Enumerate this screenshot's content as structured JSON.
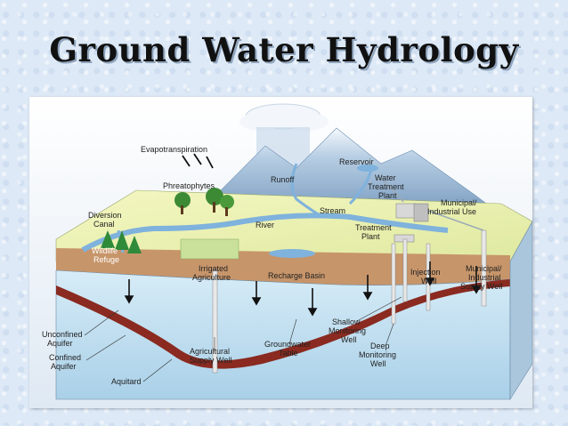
{
  "title": "Ground Water Hydrology",
  "labels": {
    "evapotranspiration": "Evapotranspiration",
    "phreatophytes": "Phreatophytes",
    "runoff": "Runoff",
    "reservoir": "Reservoir",
    "water_treatment_1": "Water",
    "water_treatment_2": "Treatment",
    "water_treatment_3": "Plant",
    "municipal_use_1": "Municipal/",
    "municipal_use_2": "Industrial Use",
    "stream": "Stream",
    "diversion_1": "Diversion",
    "diversion_2": "Canal",
    "river": "River",
    "treatment_plant_1": "Treatment",
    "treatment_plant_2": "Plant",
    "wildlife_1": "Wildlife",
    "wildlife_2": "Refuge",
    "irrigated_1": "Irrigated",
    "irrigated_2": "Agriculture",
    "recharge_basin": "Recharge Basin",
    "injection_1": "Injection",
    "injection_2": "Well",
    "municipal_supply_1": "Municipal/",
    "municipal_supply_2": "Industrial",
    "municipal_supply_3": "Supply Well",
    "shallow_1": "Shallow",
    "shallow_2": "Monitoring",
    "shallow_3": "Well",
    "unconfined_1": "Unconfined",
    "unconfined_2": "Aquifer",
    "confined_1": "Confined",
    "confined_2": "Aquifer",
    "aquitard": "Aquitard",
    "agricultural_1": "Agricultural",
    "agricultural_2": "Supply Well",
    "gw_table_1": "Groundwater",
    "gw_table_2": "Table",
    "deep_1": "Deep",
    "deep_2": "Monitoring",
    "deep_3": "Well"
  },
  "colors": {
    "sky": "#d8e6f4",
    "land": "#eef3b0",
    "water": "#7fb2dc",
    "soil": "#b9865c",
    "aquifer": "#cfe6f3",
    "aquitard": "#8a2a20",
    "mountain": "#9fbcd8"
  }
}
